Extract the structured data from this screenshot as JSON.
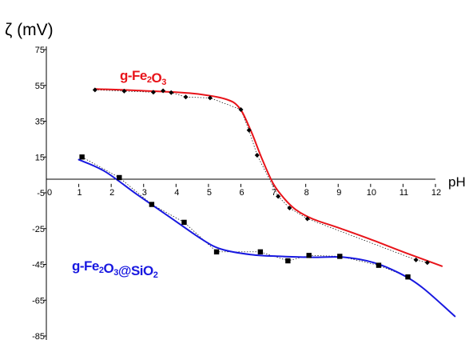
{
  "chart_data": {
    "type": "scatter",
    "ylabel": "ζ (mV)",
    "xlabel": "pH",
    "xlim": [
      0,
      12
    ],
    "ylim": [
      -85,
      75
    ],
    "x_ticks": [
      0,
      1,
      2,
      3,
      4,
      5,
      6,
      7,
      8,
      9,
      10,
      11,
      12
    ],
    "y_ticks": [
      75,
      55,
      35,
      15,
      -5,
      -25,
      -45,
      -65,
      -85
    ],
    "grid": false,
    "series": [
      {
        "label_parts": [
          {
            "text": "g-Fe",
            "sub": false
          },
          {
            "text": "2",
            "sub": true
          },
          {
            "text": "O",
            "sub": false
          },
          {
            "text": "3",
            "sub": true
          }
        ],
        "color": "#e8141a",
        "marker": "diamond",
        "points": [
          [
            1.5,
            52.5
          ],
          [
            2.4,
            51.8
          ],
          [
            3.3,
            51.2
          ],
          [
            3.6,
            52.0
          ],
          [
            3.85,
            51.0
          ],
          [
            4.3,
            48.5
          ],
          [
            5.05,
            48.0
          ],
          [
            6.0,
            41.5
          ],
          [
            6.25,
            30.0
          ],
          [
            6.5,
            16.0
          ],
          [
            7.15,
            -7.0
          ],
          [
            7.5,
            -13.5
          ],
          [
            8.05,
            -19.5
          ],
          [
            11.4,
            -42.5
          ],
          [
            11.75,
            -44.0
          ]
        ],
        "fit": [
          [
            1.5,
            53
          ],
          [
            3.0,
            52
          ],
          [
            4.5,
            50.5
          ],
          [
            5.5,
            47.5
          ],
          [
            5.95,
            42.5
          ],
          [
            6.3,
            30
          ],
          [
            6.65,
            14
          ],
          [
            7.0,
            0
          ],
          [
            7.35,
            -8.5
          ],
          [
            7.7,
            -14.5
          ],
          [
            8.2,
            -19.5
          ],
          [
            9.0,
            -24.5
          ],
          [
            10.0,
            -31
          ],
          [
            11.0,
            -38
          ],
          [
            12.2,
            -46
          ]
        ]
      },
      {
        "label_parts": [
          {
            "text": "g-Fe",
            "sub": false
          },
          {
            "text": "2",
            "sub": true
          },
          {
            "text": "O",
            "sub": false
          },
          {
            "text": "3",
            "sub": true
          },
          {
            "text": "@SiO",
            "sub": false
          },
          {
            "text": "2",
            "sub": true
          }
        ],
        "color": "#1818e0",
        "marker": "square",
        "points": [
          [
            1.1,
            15.0
          ],
          [
            2.25,
            3.5
          ],
          [
            3.25,
            -11.5
          ],
          [
            4.25,
            -21.5
          ],
          [
            5.25,
            -38.0
          ],
          [
            6.6,
            -38.0
          ],
          [
            7.45,
            -43.0
          ],
          [
            8.1,
            -40.0
          ],
          [
            9.05,
            -40.5
          ],
          [
            10.25,
            -45.5
          ],
          [
            11.15,
            -52.0
          ]
        ],
        "fit": [
          [
            1.0,
            13.5
          ],
          [
            1.8,
            7
          ],
          [
            2.8,
            -6
          ],
          [
            3.8,
            -18.5
          ],
          [
            4.8,
            -31
          ],
          [
            5.4,
            -36.5
          ],
          [
            6.3,
            -39.5
          ],
          [
            7.2,
            -40.5
          ],
          [
            8.2,
            -41
          ],
          [
            9.2,
            -41
          ],
          [
            10.1,
            -44
          ],
          [
            10.9,
            -50
          ],
          [
            11.6,
            -58
          ],
          [
            12.6,
            -74
          ]
        ]
      }
    ]
  }
}
